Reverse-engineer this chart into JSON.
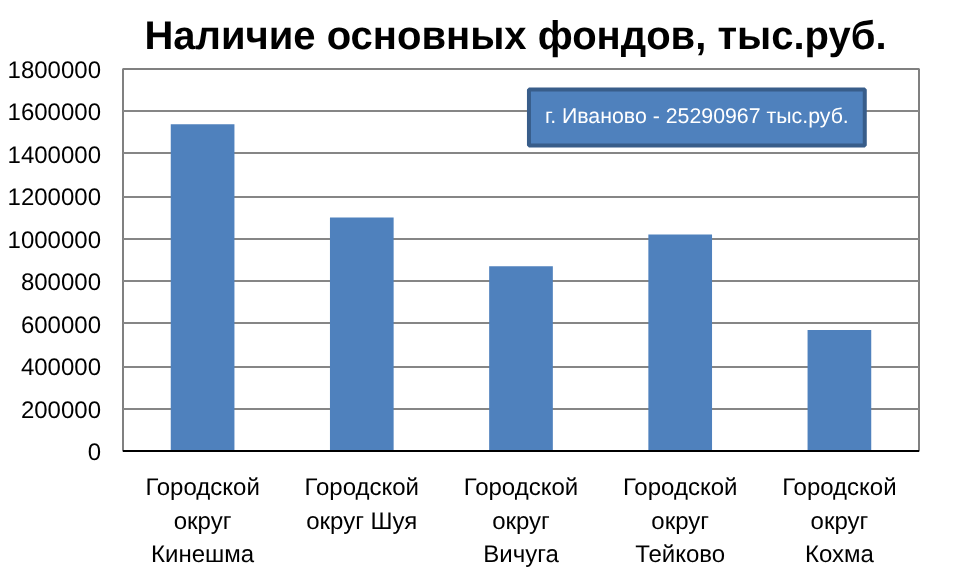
{
  "chart_data": {
    "type": "bar",
    "title": "Наличие основных  фондов, тыс.руб.",
    "categories": [
      "Городской округ Кинешма",
      "Городской округ Шуя",
      "Городской округ Вичуга",
      "Городской округ Тейково",
      "Городской округ Кохма"
    ],
    "values": [
      1540000,
      1100000,
      870000,
      1020000,
      570000
    ],
    "color": "#4f81bd",
    "ylim": [
      0,
      1800000
    ],
    "yticks": [
      0,
      200000,
      400000,
      600000,
      800000,
      1000000,
      1200000,
      1400000,
      1600000,
      1800000
    ],
    "grid": "y",
    "annotations": [
      "г. Иваново - 25290967 тыс.руб."
    ]
  }
}
